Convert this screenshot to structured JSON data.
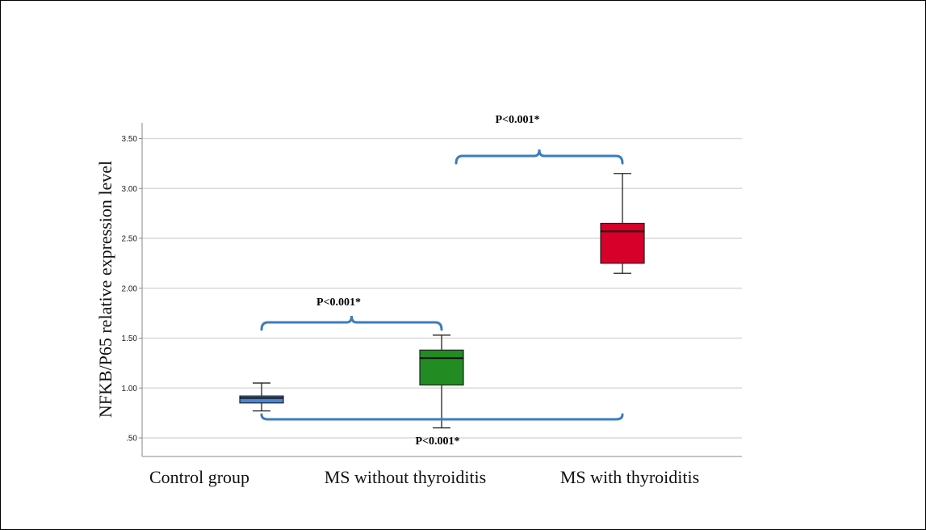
{
  "chart_data": {
    "type": "box",
    "ylabel": "NFKB/P65 relative expression level",
    "xlabel": "",
    "ylim": [
      0.42,
      3.65
    ],
    "yticks": [
      0.5,
      1.0,
      1.5,
      2.0,
      2.5,
      3.0,
      3.5
    ],
    "ytick_labels": [
      ".50",
      "1.00",
      "1.50",
      "2.00",
      "2.50",
      "3.00",
      "3.50"
    ],
    "grid": true,
    "categories": [
      "Control group",
      "MS without thyroiditis",
      "MS with thyroiditis"
    ],
    "boxes": [
      {
        "category": "Control group",
        "whisker_low": 0.77,
        "q1": 0.85,
        "median": 0.9,
        "q3": 0.92,
        "whisker_high": 1.05,
        "color": "#4a86d6"
      },
      {
        "category": "MS without thyroiditis",
        "whisker_low": 0.6,
        "q1": 1.03,
        "median": 1.3,
        "q3": 1.38,
        "whisker_high": 1.53,
        "color": "#228b22"
      },
      {
        "category": "MS with thyroiditis",
        "whisker_low": 2.15,
        "q1": 2.25,
        "median": 2.57,
        "q3": 2.65,
        "whisker_high": 3.15,
        "color": "#d6002b"
      }
    ],
    "annotations": [
      {
        "from": "Control group",
        "to": "MS without thyroiditis",
        "label": "P<0.001*",
        "style": "brace-top"
      },
      {
        "from": "MS without thyroiditis",
        "to": "MS with thyroiditis",
        "label": "P<0.001*",
        "style": "brace-top"
      },
      {
        "from": "Control group",
        "to": "MS with thyroiditis",
        "label": "P<0.001*",
        "style": "bracket-bottom"
      }
    ],
    "bracket_color": "#3a7dc0"
  }
}
